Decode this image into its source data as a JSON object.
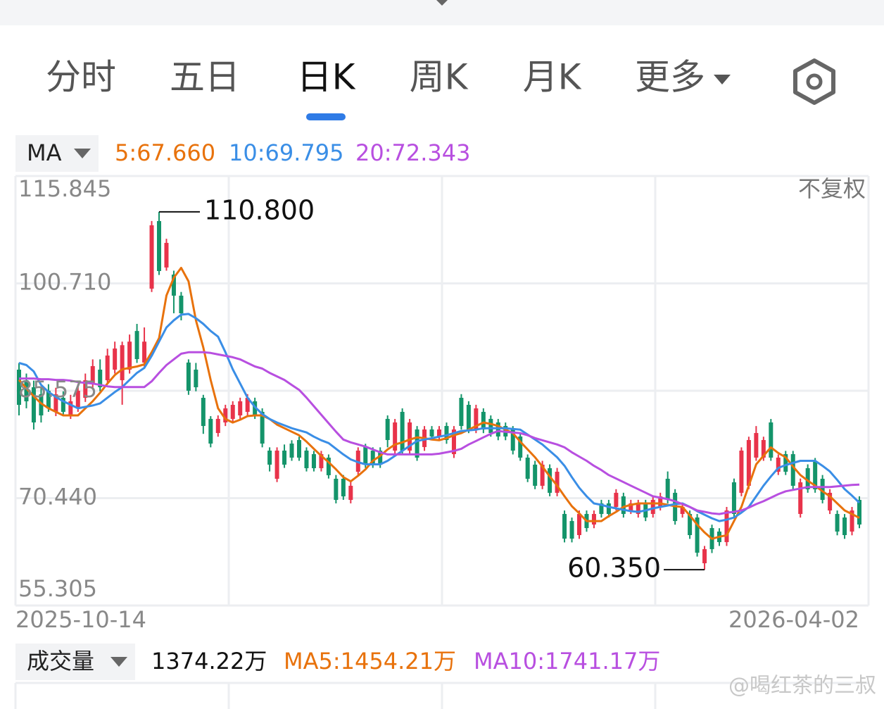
{
  "tabs": [
    "分时",
    "五日",
    "日K",
    "周K",
    "月K",
    "更多"
  ],
  "ma_selector": "MA",
  "adjust": "不复权",
  "volume": {
    "selector": "成交量",
    "value": "1374.22万",
    "ma": [
      "MA5:1454.21万",
      "MA10:1741.17万"
    ]
  },
  "watermark": "@喝红茶的三叔",
  "chart_data": {
    "type": "candlestick",
    "up_color": "#e8334a",
    "down_color": "#14946a",
    "grid": true,
    "ylim": [
      55.305,
      115.845
    ],
    "yticks": [
      55.305,
      {
        "value": 70.44,
        "label": "70.440"
      },
      85.575,
      {
        "value": 100.71,
        "label": "100.710"
      },
      115.845
    ],
    "categories": [
      "2025-10-14",
      null,
      null,
      null,
      null,
      null,
      null,
      null,
      null,
      null,
      null,
      null,
      null,
      null,
      null,
      null,
      null,
      null,
      null,
      null,
      null,
      null,
      null,
      null,
      null,
      null,
      null,
      null,
      null,
      null,
      null,
      null,
      null,
      null,
      null,
      null,
      null,
      null,
      null,
      null,
      null,
      null,
      null,
      null,
      null,
      null,
      null,
      null,
      null,
      null,
      null,
      null,
      null,
      null,
      null,
      null,
      null,
      null,
      null,
      null,
      null,
      null,
      null,
      null,
      null,
      null,
      null,
      null,
      null,
      null,
      null,
      null,
      null,
      null,
      null,
      null,
      null,
      null,
      null,
      null,
      null,
      null,
      null,
      null,
      null,
      null,
      null,
      null,
      null,
      null,
      null,
      null,
      null,
      null,
      null,
      null,
      null,
      null,
      null,
      null,
      null,
      null,
      null,
      null,
      null,
      null,
      null,
      null,
      null,
      null,
      null,
      null,
      null,
      null,
      "2026-04-02"
    ],
    "ohlc": [
      [
        88.55,
        89.5,
        82.1,
        83.59
      ],
      [
        87.06,
        88,
        83.1,
        84.09
      ],
      [
        86.07,
        87,
        80.1,
        81.11
      ],
      [
        85.08,
        86,
        81.1,
        82.1
      ],
      [
        85.58,
        86.5,
        82.6,
        83.09
      ],
      [
        82.6,
        86,
        82,
        85.08
      ],
      [
        84.58,
        85.5,
        82,
        82.6
      ],
      [
        82.1,
        85,
        81.6,
        84.09
      ],
      [
        83.09,
        86.5,
        82.6,
        85.58
      ],
      [
        84.58,
        88,
        84,
        87.06
      ],
      [
        86.57,
        90,
        86,
        89.05
      ],
      [
        88.55,
        90,
        85.5,
        86.07
      ],
      [
        87.06,
        91.5,
        86.5,
        90.54
      ],
      [
        88.55,
        92.5,
        88,
        91.53
      ],
      [
        87.06,
        92.5,
        83.6,
        92
      ],
      [
        88.55,
        93.5,
        88,
        92.5
      ],
      [
        94,
        95,
        89.5,
        90.04
      ],
      [
        89.55,
        94.5,
        89,
        92.5
      ],
      [
        99.97,
        109.5,
        99.5,
        108.9
      ],
      [
        109.5,
        110.8,
        101.9,
        102.45
      ],
      [
        102.95,
        107,
        102.5,
        106.42
      ],
      [
        101.95,
        102.5,
        96.5,
        98.98
      ],
      [
        98.98,
        99.5,
        95.5,
        96.49
      ],
      [
        89.55,
        90,
        85,
        85.58
      ],
      [
        88.55,
        89.5,
        85.5,
        86.07
      ],
      [
        84.58,
        85,
        79.5,
        80.61
      ],
      [
        81.61,
        82,
        77.6,
        78.13
      ],
      [
        79.62,
        82.1,
        79.1,
        81.61
      ],
      [
        81.11,
        83.6,
        80.6,
        83.09
      ],
      [
        81.61,
        84.1,
        81.1,
        83.59
      ],
      [
        82.1,
        84.6,
        81.6,
        84.09
      ],
      [
        82.6,
        85.1,
        82.1,
        84.58
      ],
      [
        84.09,
        84.6,
        81.6,
        82.1
      ],
      [
        82.6,
        83.1,
        77.6,
        78.13
      ],
      [
        77.14,
        77.6,
        74.2,
        75.16
      ],
      [
        73.17,
        77.6,
        72.7,
        77.14
      ],
      [
        77.14,
        78,
        74.7,
        75.16
      ],
      [
        78.13,
        78.6,
        75.7,
        76.15
      ],
      [
        78.63,
        79.1,
        75.7,
        76.15
      ],
      [
        77.14,
        77.6,
        74.2,
        74.66
      ],
      [
        76.64,
        77.1,
        74.2,
        74.66
      ],
      [
        74.66,
        77.1,
        74.2,
        76.64
      ],
      [
        76.15,
        76.6,
        73.2,
        73.67
      ],
      [
        73.17,
        73.7,
        69.7,
        70.19
      ],
      [
        73.17,
        73.7,
        70.2,
        70.69
      ],
      [
        70.19,
        72.7,
        69.7,
        72.18
      ],
      [
        74.16,
        77.6,
        73.7,
        77.14
      ],
      [
        77.64,
        78.1,
        74.7,
        75.16
      ],
      [
        77.14,
        77.6,
        74.7,
        75.16
      ],
      [
        77.14,
        77.6,
        74.7,
        75.16
      ],
      [
        81.61,
        82.1,
        77.6,
        78.63
      ],
      [
        77.14,
        81.6,
        76.6,
        81.11
      ],
      [
        82.6,
        83.1,
        76.6,
        77.14
      ],
      [
        77.14,
        81.6,
        76.6,
        81.11
      ],
      [
        80.12,
        80.6,
        75.7,
        76.15
      ],
      [
        77.64,
        80.6,
        77.1,
        80.12
      ],
      [
        80.12,
        80.6,
        78.6,
        79.13
      ],
      [
        79.13,
        80.6,
        78.6,
        80.12
      ],
      [
        80.61,
        81.1,
        78.1,
        78.63
      ],
      [
        76.64,
        80.6,
        76.1,
        80.12
      ],
      [
        84.58,
        85.1,
        80.1,
        80.61
      ],
      [
        83.59,
        84.1,
        79.6,
        80.12
      ],
      [
        80.12,
        83.6,
        79.6,
        83.09
      ],
      [
        82.6,
        83.1,
        79.6,
        80.12
      ],
      [
        81.61,
        82.1,
        79.1,
        79.62
      ],
      [
        81.11,
        81.6,
        78.6,
        79.13
      ],
      [
        80.61,
        81.1,
        78.6,
        79.13
      ],
      [
        80.12,
        80.6,
        76.6,
        77.14
      ],
      [
        79.13,
        79.6,
        75.7,
        76.15
      ],
      [
        76.15,
        76.6,
        72.7,
        73.17
      ],
      [
        75.16,
        75.7,
        71.7,
        72.18
      ],
      [
        72.18,
        75.7,
        71.7,
        75.16
      ],
      [
        74.66,
        75.2,
        70.7,
        71.19
      ],
      [
        71.19,
        74.7,
        70.7,
        74.16
      ],
      [
        68.21,
        68.7,
        64.2,
        64.73
      ],
      [
        67.21,
        67.7,
        64.2,
        64.73
      ],
      [
        65.23,
        68.7,
        64.7,
        68.21
      ],
      [
        68.21,
        68.7,
        65.7,
        66.22
      ],
      [
        66.72,
        68.7,
        66.2,
        68.21
      ],
      [
        69.7,
        70.2,
        67.7,
        68.21
      ],
      [
        69.7,
        70.2,
        67.7,
        68.21
      ],
      [
        69.2,
        71.7,
        68.7,
        71.19
      ],
      [
        70.69,
        71.2,
        67.7,
        68.21
      ],
      [
        68.7,
        70.2,
        68.2,
        69.7
      ],
      [
        68.21,
        70.2,
        67.7,
        69.7
      ],
      [
        69.7,
        70.2,
        67.2,
        67.71
      ],
      [
        68.21,
        70.7,
        67.7,
        70.19
      ],
      [
        69.2,
        71.2,
        68.7,
        70.69
      ],
      [
        73.17,
        74.2,
        69.7,
        70.19
      ],
      [
        71.19,
        71.7,
        66.7,
        67.21
      ],
      [
        68.21,
        69.7,
        67.7,
        69.2
      ],
      [
        68.21,
        68.7,
        64.7,
        65.23
      ],
      [
        67.71,
        68.2,
        62.2,
        62.75
      ],
      [
        61.26,
        63.7,
        60.35,
        63.25
      ],
      [
        66.22,
        66.7,
        62.7,
        63.25
      ],
      [
        65.73,
        66.2,
        63.7,
        64.24
      ],
      [
        64.24,
        69.2,
        63.7,
        68.7
      ],
      [
        72.67,
        73.2,
        67.7,
        68.21
      ],
      [
        71.19,
        77.6,
        70.7,
        77.14
      ],
      [
        72.18,
        79.1,
        71.7,
        78.63
      ],
      [
        76.15,
        80.6,
        75.7,
        79.62
      ],
      [
        76.15,
        79.1,
        75.7,
        78.63
      ],
      [
        81.11,
        81.6,
        75.7,
        76.15
      ],
      [
        74.16,
        76.6,
        73.7,
        76.15
      ],
      [
        76.64,
        77.1,
        73.7,
        74.16
      ],
      [
        76.64,
        77.1,
        71.7,
        72.18
      ],
      [
        68.21,
        73.2,
        67.7,
        72.67
      ],
      [
        74.66,
        75.2,
        71.2,
        71.68
      ],
      [
        75.65,
        76.1,
        71.2,
        71.68
      ],
      [
        73.17,
        73.7,
        69.7,
        70.19
      ],
      [
        68.7,
        71.7,
        68.2,
        71.19
      ],
      [
        68.21,
        68.7,
        65.2,
        65.73
      ],
      [
        67.71,
        68.2,
        64.7,
        65.23
      ],
      [
        65.73,
        69.2,
        65.2,
        68.7
      ],
      [
        70.19,
        70.7,
        66.2,
        66.72
      ]
    ],
    "series": [
      {
        "name": "5:67.660",
        "color": "#e8720c",
        "values": [
          87.1,
          85.9,
          84.8,
          83.8,
          83.1,
          82.6,
          82.1,
          82.1,
          82.1,
          83.1,
          84.1,
          85.3,
          86.6,
          87.8,
          88.6,
          88.8,
          89.0,
          89.3,
          91.0,
          93.0,
          99.0,
          101.5,
          102.9,
          101.0,
          95.5,
          91.7,
          87.1,
          83.1,
          81.6,
          81.1,
          81.5,
          82.0,
          82.1,
          82.1,
          81.6,
          80.8,
          80.3,
          79.8,
          79.3,
          78.4,
          77.4,
          76.4,
          75.5,
          74.5,
          73.4,
          72.8,
          73.6,
          74.5,
          75.7,
          76.4,
          77.3,
          78.0,
          78.3,
          78.7,
          79.0,
          78.9,
          78.7,
          78.6,
          78.9,
          79.3,
          79.6,
          80.1,
          80.6,
          81.1,
          80.9,
          80.6,
          80.1,
          79.6,
          78.4,
          77.3,
          76.2,
          74.9,
          73.5,
          72.2,
          70.7,
          69.3,
          68.3,
          67.2,
          67.2,
          67.2,
          67.9,
          68.5,
          69.2,
          69.5,
          69.7,
          69.7,
          69.7,
          69.7,
          69.5,
          69.3,
          69.2,
          68.0,
          66.7,
          65.6,
          64.7,
          65.0,
          65.2,
          67.2,
          69.2,
          72.2,
          75.2,
          76.4,
          77.6,
          76.8,
          76.2,
          74.9,
          73.7,
          72.9,
          72.2,
          71.4,
          70.7,
          69.7,
          68.7,
          68.2,
          67.66
        ]
      },
      {
        "name": "10:69.795",
        "color": "#3a8ee6",
        "values": [
          89.5,
          89.2,
          88.3,
          86.4,
          85.4,
          84.7,
          84.1,
          83.6,
          83.1,
          83.3,
          83.5,
          83.8,
          84.6,
          85.4,
          86.1,
          87.1,
          88.1,
          88.8,
          90.5,
          92.5,
          94.5,
          95.5,
          96.3,
          96.4,
          95.8,
          95.0,
          94.0,
          93.2,
          91.0,
          88.6,
          86.6,
          84.6,
          83.3,
          82.3,
          81.6,
          81.1,
          80.7,
          80.3,
          80.0,
          79.7,
          79.1,
          78.6,
          78.2,
          77.4,
          76.6,
          75.9,
          75.5,
          75.2,
          75.2,
          75.2,
          75.7,
          76.4,
          77.1,
          77.8,
          78.5,
          78.7,
          78.9,
          79.1,
          79.3,
          79.6,
          79.9,
          80.0,
          80.1,
          80.3,
          80.3,
          80.3,
          80.3,
          80.2,
          80.1,
          79.4,
          78.7,
          78.0,
          77.1,
          76.2,
          75.0,
          73.4,
          71.9,
          70.7,
          69.7,
          69.5,
          69.2,
          69.0,
          68.8,
          68.6,
          68.5,
          68.7,
          69.0,
          69.2,
          69.4,
          69.6,
          69.7,
          69.2,
          68.6,
          68.1,
          67.6,
          67.2,
          67.4,
          67.7,
          68.4,
          69.2,
          70.7,
          72.2,
          73.5,
          74.7,
          75.1,
          75.4,
          75.7,
          75.7,
          75.7,
          75.0,
          74.2,
          73.0,
          71.7,
          70.8,
          69.795
        ]
      },
      {
        "name": "20:72.343",
        "color": "#b84fe0",
        "values": [
          87.3,
          87.3,
          87.3,
          87.2,
          87.2,
          87.1,
          87.1,
          87.0,
          86.8,
          86.7,
          86.6,
          86.4,
          86.2,
          86.1,
          86.1,
          86.1,
          86.1,
          86.1,
          86.9,
          88.1,
          89.2,
          90.0,
          90.8,
          91.0,
          91.0,
          91.0,
          90.9,
          90.7,
          90.5,
          90.3,
          90.0,
          89.5,
          89.0,
          88.7,
          88.1,
          87.6,
          87.1,
          86.4,
          85.7,
          84.6,
          83.4,
          82.2,
          81.0,
          79.8,
          78.7,
          78.3,
          78.0,
          77.7,
          77.3,
          76.9,
          76.6,
          76.6,
          76.6,
          76.6,
          76.6,
          76.6,
          76.6,
          76.7,
          76.9,
          77.1,
          77.4,
          78.0,
          78.5,
          79.0,
          79.5,
          79.9,
          79.8,
          79.7,
          79.6,
          79.3,
          78.9,
          78.6,
          78.3,
          78.0,
          77.6,
          76.9,
          76.3,
          75.7,
          75.0,
          74.4,
          73.7,
          73.2,
          72.7,
          72.2,
          71.7,
          71.2,
          70.7,
          70.5,
          70.3,
          70.0,
          69.6,
          69.2,
          68.7,
          68.5,
          68.3,
          68.2,
          68.4,
          68.5,
          68.7,
          69.1,
          69.6,
          70.0,
          70.5,
          71.0,
          71.4,
          71.6,
          71.8,
          72.0,
          72.0,
          72.0,
          72.0,
          72.1,
          72.2,
          72.3,
          72.343
        ]
      }
    ],
    "annotations": [
      {
        "label": "110.800",
        "value": 110.8,
        "side": "right"
      },
      {
        "label": "60.350",
        "value": 60.35,
        "side": "left"
      }
    ]
  }
}
